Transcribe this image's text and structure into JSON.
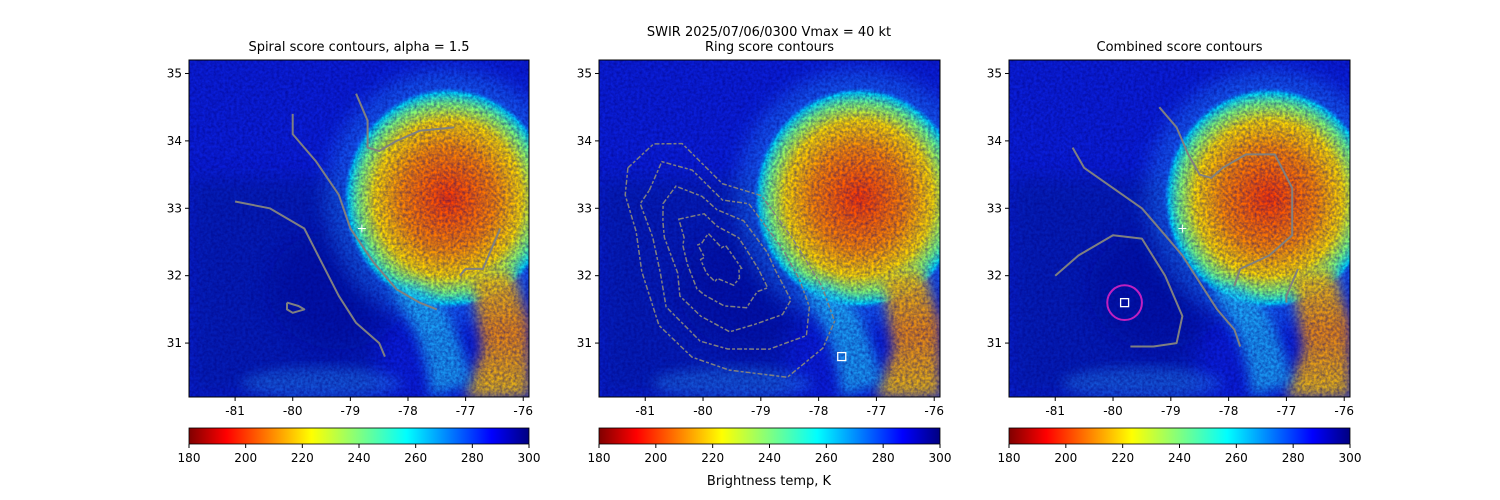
{
  "suptitle": "SWIR  2025/07/06/0300    Vmax = 40 kt",
  "colorbar_label": "Brightness temp, K",
  "center_marker_color": "#ffffff",
  "contour_color": "#808080",
  "circle_color": "#c020c0",
  "chart_data": [
    {
      "type": "heatmap",
      "title": "Spiral score contours, alpha =  1.5",
      "xlim": [
        -81.8,
        -75.9
      ],
      "ylim": [
        30.2,
        35.2
      ],
      "xticks": [
        "-81",
        "-80",
        "-79",
        "-78",
        "-77",
        "-76"
      ],
      "yticks": [
        "31",
        "32",
        "33",
        "34",
        "35"
      ],
      "center_marker": {
        "lon": -78.8,
        "lat": 32.7
      },
      "colorbar": {
        "min": 180,
        "max": 300,
        "ticks": [
          "180",
          "200",
          "220",
          "240",
          "260",
          "280",
          "300"
        ]
      },
      "contours": [
        [
          [
            -80.0,
            34.4
          ],
          [
            -80.0,
            34.1
          ],
          [
            -79.6,
            33.7
          ],
          [
            -79.2,
            33.2
          ],
          [
            -79.0,
            32.7
          ],
          [
            -78.6,
            32.2
          ],
          [
            -78.2,
            31.8
          ],
          [
            -77.8,
            31.6
          ],
          [
            -77.5,
            31.5
          ]
        ],
        [
          [
            -78.9,
            34.7
          ],
          [
            -78.7,
            34.3
          ],
          [
            -78.7,
            33.9
          ],
          [
            -78.5,
            33.85
          ],
          [
            -78.2,
            34.0
          ],
          [
            -77.8,
            34.15
          ],
          [
            -77.2,
            34.2
          ]
        ],
        [
          [
            -81.0,
            33.1
          ],
          [
            -80.4,
            33.0
          ],
          [
            -79.8,
            32.7
          ],
          [
            -79.5,
            32.2
          ],
          [
            -79.2,
            31.7
          ],
          [
            -78.9,
            31.3
          ],
          [
            -78.5,
            31.0
          ],
          [
            -78.4,
            30.8
          ]
        ],
        [
          [
            -77.1,
            32.0
          ],
          [
            -77.0,
            32.1
          ],
          [
            -76.7,
            32.1
          ],
          [
            -76.4,
            32.7
          ]
        ],
        [
          [
            -80.1,
            31.6
          ],
          [
            -79.9,
            31.55
          ],
          [
            -79.8,
            31.5
          ],
          [
            -80.0,
            31.45
          ],
          [
            -80.1,
            31.5
          ],
          [
            -80.1,
            31.6
          ]
        ]
      ]
    },
    {
      "type": "heatmap",
      "title": "Ring score contours",
      "xlim": [
        -81.8,
        -75.9
      ],
      "ylim": [
        30.2,
        35.2
      ],
      "xticks": [
        "-81",
        "-80",
        "-79",
        "-78",
        "-77",
        "-76"
      ],
      "yticks": [
        "31",
        "32",
        "33",
        "34",
        "35"
      ],
      "square_marker": {
        "lon": -77.6,
        "lat": 30.8
      },
      "colorbar": {
        "min": 180,
        "max": 300,
        "ticks": [
          "180",
          "200",
          "220",
          "240",
          "260",
          "280",
          "300"
        ]
      },
      "contour_region": [
        [
          -81.3,
          33.6
        ],
        [
          -80.9,
          34.0
        ],
        [
          -80.3,
          33.9
        ],
        [
          -79.7,
          33.4
        ],
        [
          -79.0,
          33.2
        ],
        [
          -78.4,
          32.5
        ],
        [
          -78.0,
          31.9
        ],
        [
          -77.7,
          31.3
        ],
        [
          -77.9,
          30.9
        ],
        [
          -78.6,
          30.55
        ],
        [
          -79.5,
          30.55
        ],
        [
          -80.2,
          30.8
        ],
        [
          -80.8,
          31.3
        ],
        [
          -81.0,
          32.0
        ],
        [
          -81.2,
          32.7
        ],
        [
          -81.35,
          33.2
        ]
      ]
    },
    {
      "type": "heatmap",
      "title": "Combined score contours",
      "xlim": [
        -81.8,
        -75.9
      ],
      "ylim": [
        30.2,
        35.2
      ],
      "xticks": [
        "-81",
        "-80",
        "-79",
        "-78",
        "-77",
        "-76"
      ],
      "yticks": [
        "31",
        "32",
        "33",
        "34",
        "35"
      ],
      "center_marker": {
        "lon": -78.8,
        "lat": 32.7
      },
      "square_marker": {
        "lon": -79.8,
        "lat": 31.6
      },
      "colorbar": {
        "min": 180,
        "max": 300,
        "ticks": [
          "180",
          "200",
          "220",
          "240",
          "260",
          "280",
          "300"
        ]
      },
      "contours": [
        [
          [
            -80.7,
            33.9
          ],
          [
            -80.5,
            33.6
          ],
          [
            -80.0,
            33.3
          ],
          [
            -79.5,
            33.0
          ],
          [
            -79.1,
            32.6
          ],
          [
            -78.8,
            32.3
          ],
          [
            -78.5,
            31.9
          ],
          [
            -78.2,
            31.5
          ],
          [
            -77.9,
            31.2
          ],
          [
            -77.8,
            30.95
          ]
        ],
        [
          [
            -79.2,
            34.5
          ],
          [
            -78.9,
            34.2
          ],
          [
            -78.7,
            33.8
          ],
          [
            -78.5,
            33.5
          ],
          [
            -78.3,
            33.45
          ],
          [
            -78.1,
            33.6
          ],
          [
            -77.7,
            33.8
          ],
          [
            -77.2,
            33.8
          ],
          [
            -76.9,
            33.3
          ],
          [
            -76.9,
            32.6
          ],
          [
            -77.3,
            32.3
          ],
          [
            -77.8,
            32.1
          ],
          [
            -77.9,
            31.85
          ]
        ],
        [
          [
            -81.0,
            32.0
          ],
          [
            -80.6,
            32.3
          ],
          [
            -80.0,
            32.6
          ],
          [
            -79.5,
            32.55
          ],
          [
            -79.1,
            32.0
          ],
          [
            -78.8,
            31.4
          ],
          [
            -78.9,
            31.0
          ],
          [
            -79.3,
            30.95
          ],
          [
            -79.7,
            30.95
          ]
        ],
        [
          [
            -76.8,
            32.1
          ],
          [
            -76.9,
            31.9
          ],
          [
            -77.0,
            31.7
          ],
          [
            -77.0,
            31.6
          ]
        ]
      ],
      "circle": {
        "lon": -79.8,
        "lat": 31.6,
        "r_deg": 0.3
      }
    }
  ]
}
